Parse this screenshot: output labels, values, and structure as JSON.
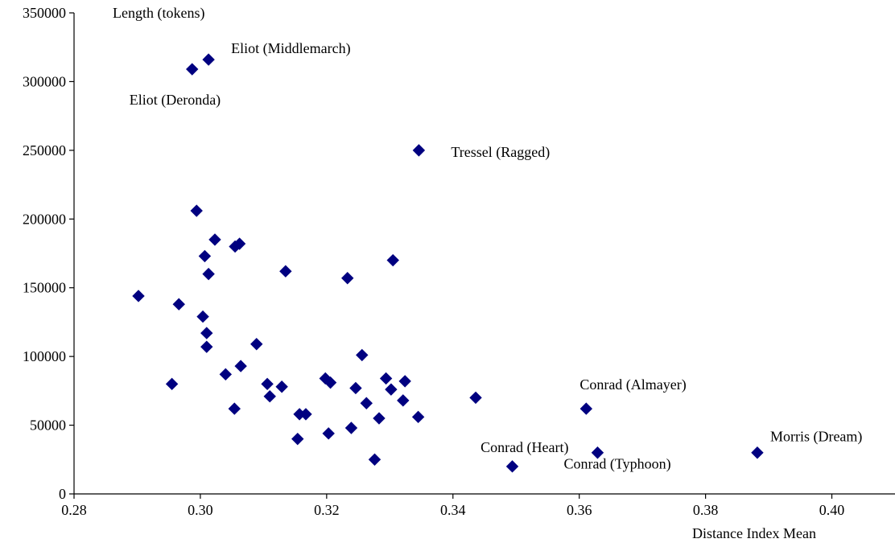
{
  "chart_data": {
    "type": "scatter",
    "ylabel": "Length (tokens)",
    "xlabel": "Distance Index Mean",
    "xlim": [
      0.28,
      0.41
    ],
    "ylim": [
      0,
      350000
    ],
    "x_ticks": [
      0.28,
      0.3,
      0.32,
      0.34,
      0.36,
      0.38,
      0.4
    ],
    "x_tick_labels": [
      "0.28",
      "0.30",
      "0.32",
      "0.34",
      "0.36",
      "0.38",
      "0.40"
    ],
    "y_ticks": [
      0,
      50000,
      100000,
      150000,
      200000,
      250000,
      300000,
      350000
    ],
    "y_tick_labels": [
      "0",
      "50000",
      "100000",
      "150000",
      "200000",
      "250000",
      "300000",
      "350000"
    ],
    "grid": false,
    "legend": "none",
    "marker_color": "#000080",
    "points": [
      {
        "x": 0.3013,
        "y": 316000,
        "label": "Eliot (Middlemarch)"
      },
      {
        "x": 0.2987,
        "y": 309000,
        "label": "Eliot (Deronda)"
      },
      {
        "x": 0.3346,
        "y": 250000,
        "label": "Tressel (Ragged)"
      },
      {
        "x": 0.3611,
        "y": 62000,
        "label": "Conrad (Almayer)"
      },
      {
        "x": 0.3494,
        "y": 20000,
        "label": "Conrad (Heart)"
      },
      {
        "x": 0.3629,
        "y": 30000,
        "label": "Conrad (Typhoon)"
      },
      {
        "x": 0.3882,
        "y": 30000,
        "label": "Morris (Dream)"
      },
      {
        "x": 0.2994,
        "y": 206000
      },
      {
        "x": 0.3023,
        "y": 185000
      },
      {
        "x": 0.3055,
        "y": 180000
      },
      {
        "x": 0.3062,
        "y": 182000
      },
      {
        "x": 0.3007,
        "y": 173000
      },
      {
        "x": 0.3013,
        "y": 160000
      },
      {
        "x": 0.3135,
        "y": 162000
      },
      {
        "x": 0.3233,
        "y": 157000
      },
      {
        "x": 0.3305,
        "y": 170000
      },
      {
        "x": 0.2902,
        "y": 144000
      },
      {
        "x": 0.2966,
        "y": 138000
      },
      {
        "x": 0.3004,
        "y": 129000
      },
      {
        "x": 0.301,
        "y": 117000
      },
      {
        "x": 0.301,
        "y": 107000
      },
      {
        "x": 0.3089,
        "y": 109000
      },
      {
        "x": 0.3064,
        "y": 93000
      },
      {
        "x": 0.304,
        "y": 87000
      },
      {
        "x": 0.3256,
        "y": 101000
      },
      {
        "x": 0.2955,
        "y": 80000
      },
      {
        "x": 0.3106,
        "y": 80000
      },
      {
        "x": 0.311,
        "y": 71000
      },
      {
        "x": 0.3129,
        "y": 78000
      },
      {
        "x": 0.3054,
        "y": 62000
      },
      {
        "x": 0.3198,
        "y": 84000
      },
      {
        "x": 0.3206,
        "y": 81000
      },
      {
        "x": 0.3246,
        "y": 77000
      },
      {
        "x": 0.3294,
        "y": 84000
      },
      {
        "x": 0.3302,
        "y": 76000
      },
      {
        "x": 0.3324,
        "y": 82000
      },
      {
        "x": 0.3263,
        "y": 66000
      },
      {
        "x": 0.3321,
        "y": 68000
      },
      {
        "x": 0.3157,
        "y": 58000
      },
      {
        "x": 0.3167,
        "y": 58000
      },
      {
        "x": 0.3283,
        "y": 55000
      },
      {
        "x": 0.3345,
        "y": 56000
      },
      {
        "x": 0.3239,
        "y": 48000
      },
      {
        "x": 0.3154,
        "y": 40000
      },
      {
        "x": 0.3203,
        "y": 44000
      },
      {
        "x": 0.3276,
        "y": 25000
      },
      {
        "x": 0.3436,
        "y": 70000
      }
    ]
  }
}
